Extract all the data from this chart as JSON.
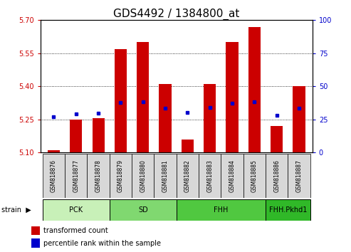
{
  "title": "GDS4492 / 1384800_at",
  "samples": [
    "GSM818876",
    "GSM818877",
    "GSM818878",
    "GSM818879",
    "GSM818880",
    "GSM818881",
    "GSM818882",
    "GSM818883",
    "GSM818884",
    "GSM818885",
    "GSM818886",
    "GSM818887"
  ],
  "red_values": [
    5.11,
    5.25,
    5.255,
    5.57,
    5.6,
    5.41,
    5.16,
    5.41,
    5.6,
    5.67,
    5.22,
    5.4
  ],
  "blue_values": [
    5.262,
    5.275,
    5.278,
    5.325,
    5.33,
    5.3,
    5.28,
    5.305,
    5.322,
    5.33,
    5.268,
    5.3
  ],
  "ylim_left": [
    5.1,
    5.7
  ],
  "ylim_right": [
    0,
    100
  ],
  "yticks_left": [
    5.1,
    5.25,
    5.4,
    5.55,
    5.7
  ],
  "yticks_right": [
    0,
    25,
    50,
    75,
    100
  ],
  "groups": [
    {
      "label": "PCK",
      "start": 0,
      "end": 2,
      "color": "#c8f0b8"
    },
    {
      "label": "SD",
      "start": 3,
      "end": 5,
      "color": "#80d870"
    },
    {
      "label": "FHH",
      "start": 6,
      "end": 9,
      "color": "#50c840"
    },
    {
      "label": "FHH.Pkhd1",
      "start": 10,
      "end": 11,
      "color": "#30b828"
    }
  ],
  "bar_color": "#cc0000",
  "dot_color": "#0000cc",
  "baseline": 5.1,
  "background_color": "#ffffff",
  "title_fontsize": 11,
  "axis_color_left": "#cc0000",
  "axis_color_right": "#0000cc",
  "legend_red": "transformed count",
  "legend_blue": "percentile rank within the sample",
  "strain_label": "strain",
  "sample_box_color": "#d8d8d8"
}
